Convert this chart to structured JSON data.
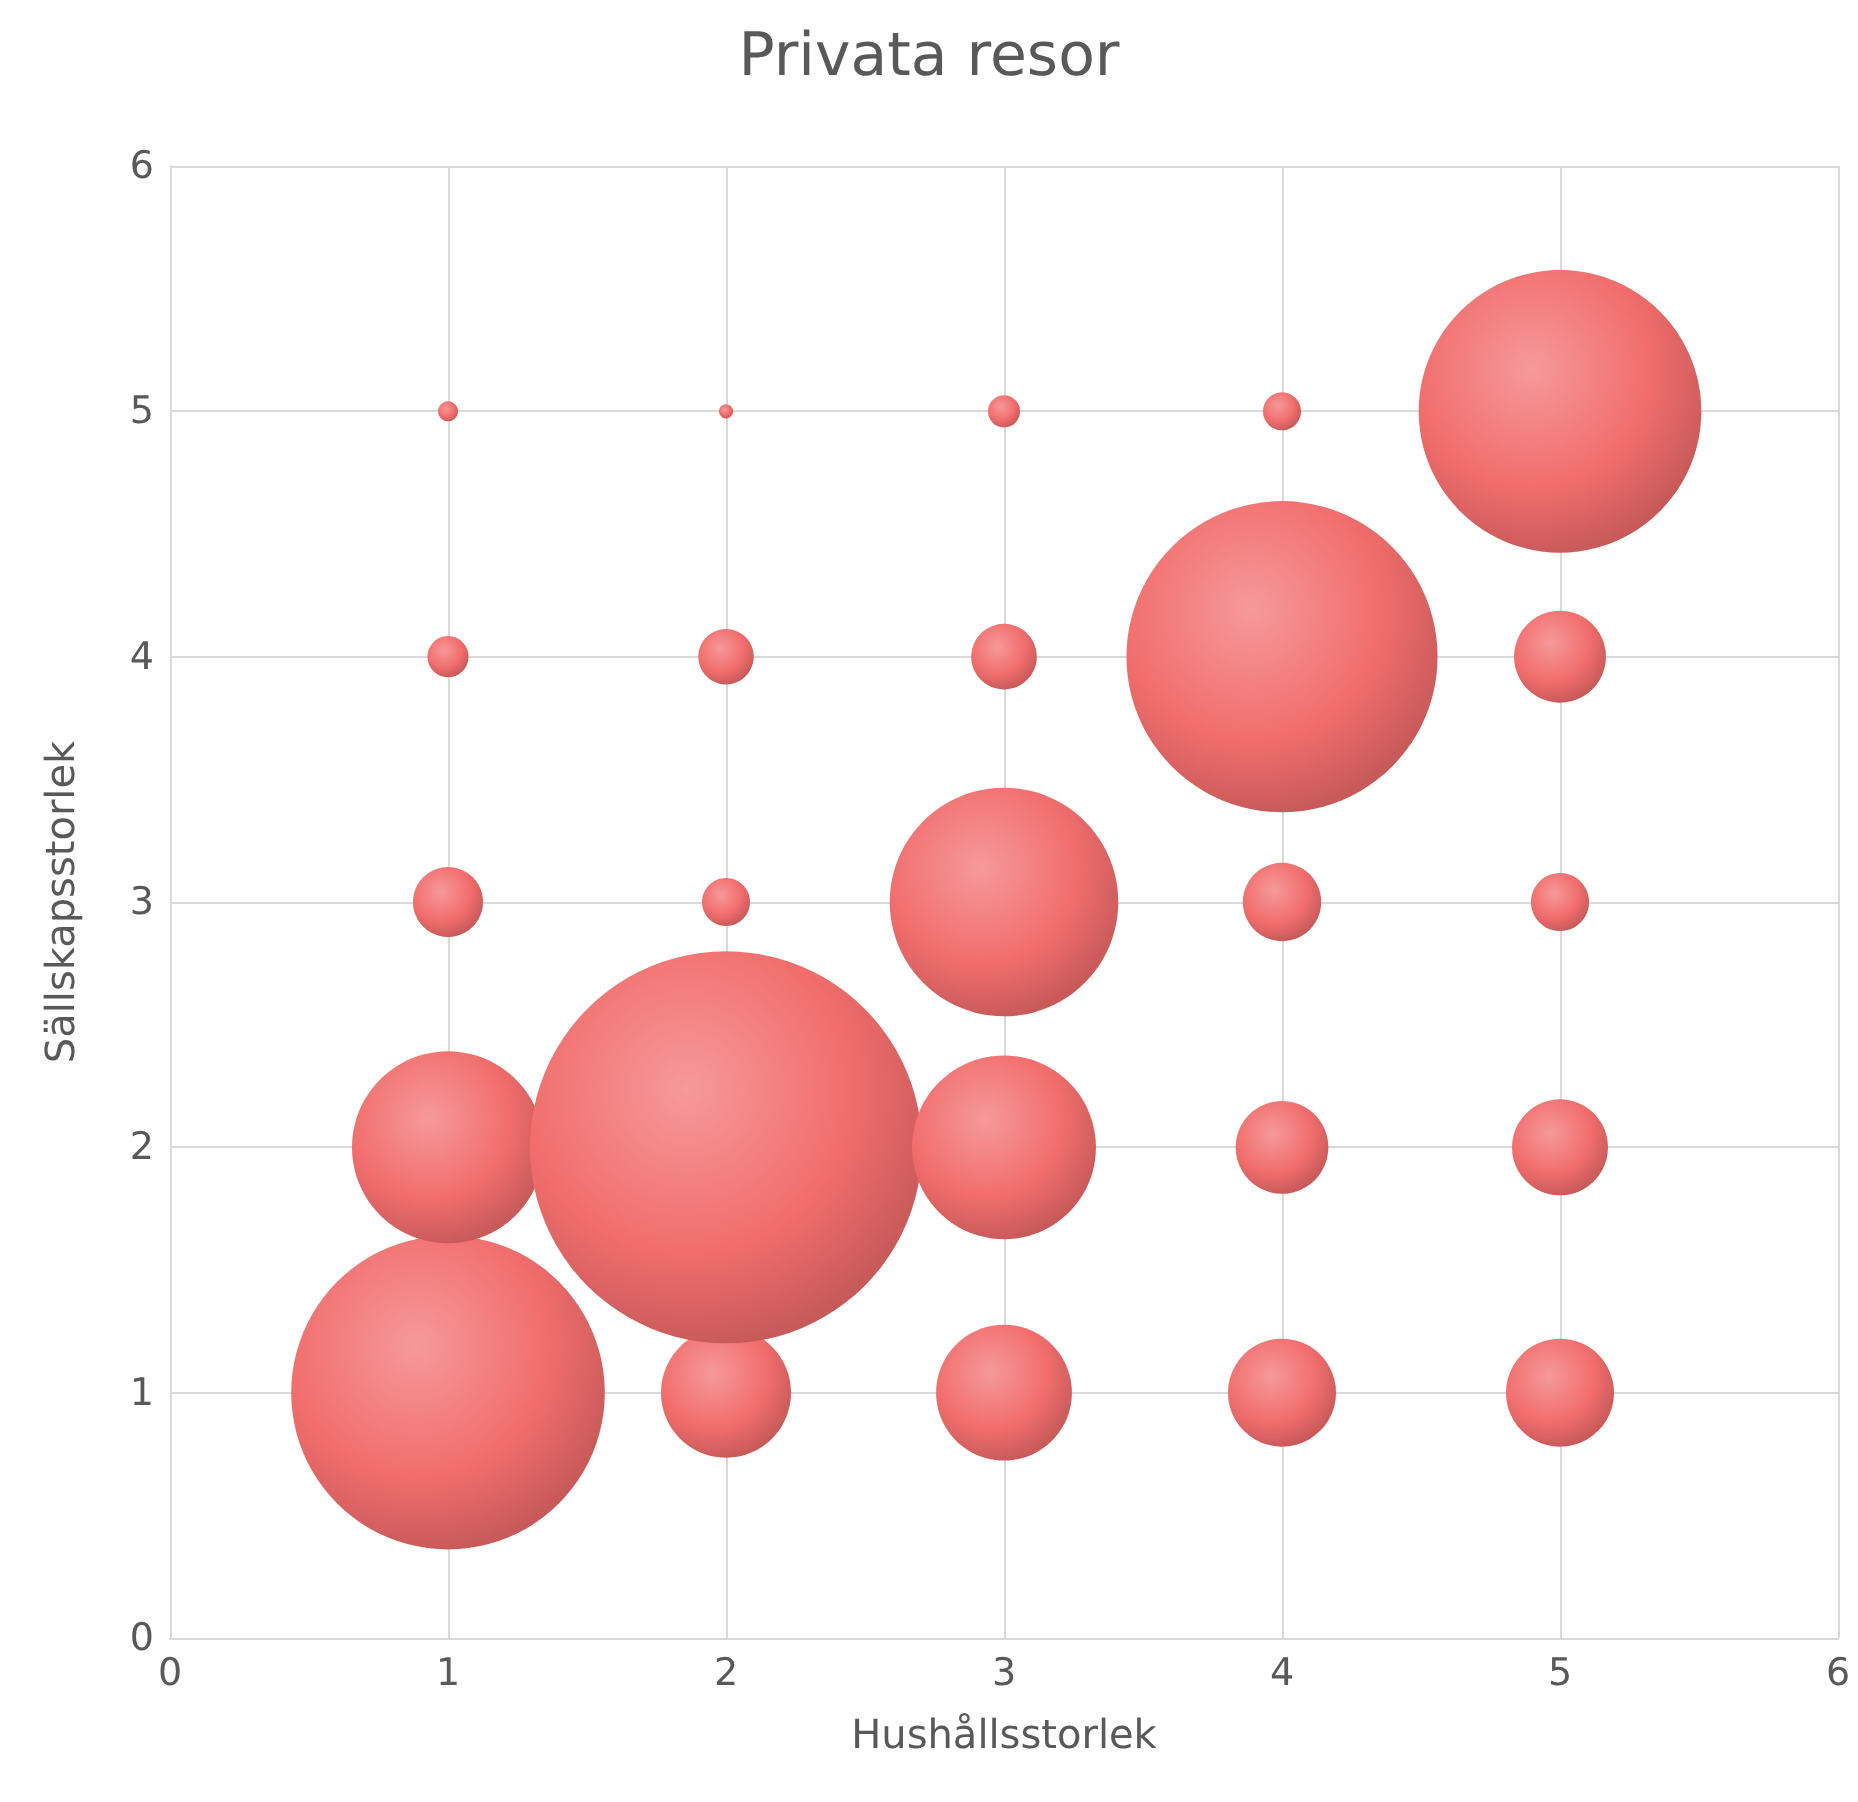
{
  "chart_data": {
    "type": "bubble",
    "title": "Privata resor",
    "xlabel": "Hushållsstorlek",
    "ylabel": "Sällskapsstorlek",
    "xlim": [
      0,
      6
    ],
    "xticks": [
      0,
      1,
      2,
      3,
      4,
      5,
      6
    ],
    "ylim": [
      0,
      6
    ],
    "yticks": [
      0,
      1,
      2,
      3,
      4,
      5,
      6
    ],
    "grid": true,
    "series": [
      {
        "color": "#f26d6d",
        "x": [
          1,
          2,
          3,
          4,
          5,
          1,
          2,
          3,
          4,
          5,
          1,
          2,
          3,
          4,
          5,
          1,
          2,
          3,
          4,
          5,
          1,
          2,
          3,
          4,
          5
        ],
        "values": [
          1,
          1,
          1,
          1,
          1,
          2,
          2,
          2,
          2,
          2,
          3,
          3,
          3,
          3,
          3,
          4,
          4,
          4,
          4,
          4,
          5,
          5,
          5,
          5,
          5
        ],
        "sizes": [
          0.64,
          0.11,
          0.12,
          0.076,
          0.076,
          0.24,
          1,
          0.22,
          0.056,
          0.06,
          0.032,
          0.015,
          0.34,
          0.04,
          0.022,
          0.011,
          0.02,
          0.028,
          0.63,
          0.055,
          0.0026,
          0.0013,
          0.0067,
          0.0094,
          0.52
        ]
      }
    ]
  }
}
